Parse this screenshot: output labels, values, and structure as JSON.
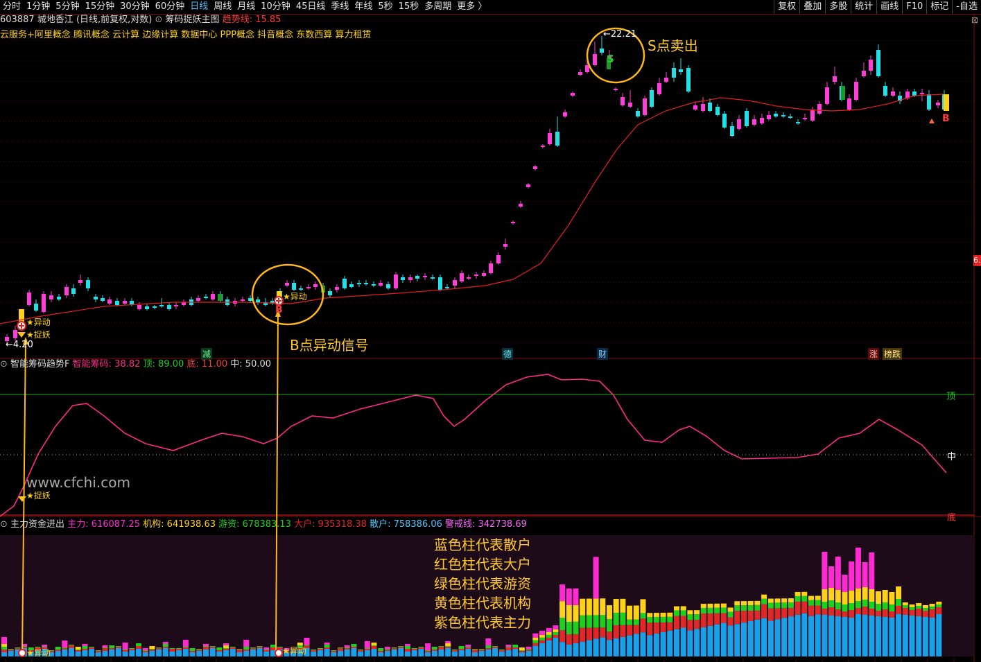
{
  "toolbar": {
    "periods": [
      "分时",
      "1分钟",
      "5分钟",
      "15分钟",
      "30分钟",
      "60分钟",
      "日线",
      "周线",
      "月线",
      "10分钟",
      "45日线",
      "季线",
      "年线",
      "5秒",
      "15秒",
      "多周期",
      "更多 〉"
    ],
    "active_period": "日线",
    "tools": [
      "复权",
      "叠加",
      "多股",
      "统计",
      "画线",
      "F10",
      "标记",
      "-自选"
    ]
  },
  "stock": {
    "code": "603887",
    "name": "城地香江",
    "mode": "(日线,前复权,对数)",
    "indicator": "筹码捉妖主图",
    "trend_label": "趋势线: 15.85"
  },
  "concepts": "云服务+阿里概念 腾讯概念 云计算 边缘计算 数据中心 PPP概念 抖音概念 东数西算 算力租赁",
  "chart_labels": {
    "high": "22.21",
    "low": "4.20",
    "right_price": "6.",
    "buy_letter": "B",
    "sell_letter": "S",
    "yidong": "★异动",
    "zhuoyao": "★捉妖",
    "tags": [
      "减",
      "德",
      "财",
      "涨",
      "榜跌"
    ]
  },
  "indicator2": {
    "name": "智能筹码趋势F",
    "smart_label": "智能筹码: 38.82",
    "top_label": "顶: 89.00",
    "bottom_label": "底: 11.00",
    "mid_label": "中: 50.00",
    "right_top": "顶",
    "right_mid": "中",
    "right_bottom": "底",
    "watermark": "www.cfchi.com"
  },
  "indicator3": {
    "name": "主力资金进出",
    "zhuli": "主力: 616087.25",
    "jigou": "机构: 641938.63",
    "youzi": "游资: 678383.13",
    "dahu": "大户: 935318.38",
    "sanhu": "散户: 758386.06",
    "jingjie": "警戒线: 342738.69"
  },
  "annotations": {
    "sell": "S点卖出",
    "buy": "B点异动信号",
    "legend": [
      "蓝色柱代表散户",
      "红色柱代表大户",
      "绿色柱代表游资",
      "黄色柱代表机构",
      "紫色柱代表主力"
    ]
  },
  "colors": {
    "up": "#ff3dd8",
    "down": "#22e0e8",
    "trend": "#e32020",
    "osc": "#ff2a88",
    "anno": "#ffc21f",
    "sanhu": "#1aa0e8",
    "dahu": "#e12828",
    "youzi": "#1ed01e",
    "jigou": "#ffd21a",
    "zhuli": "#ff2ad2"
  }
}
